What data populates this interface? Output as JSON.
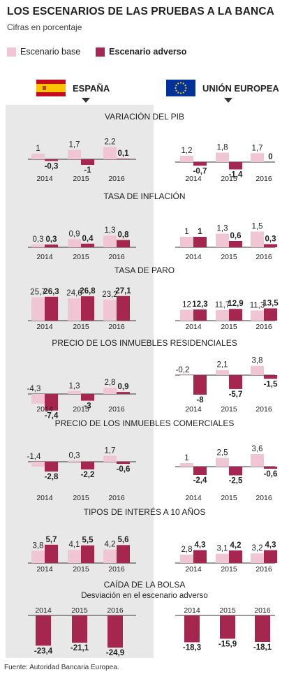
{
  "header": {
    "title": "LOS ESCENARIOS DE LAS PRUEBAS A LA BANCA",
    "subtitle": "Cifras en porcentaje"
  },
  "legend": {
    "base_label": "Escenario base",
    "adverse_label": "Escenario adverso"
  },
  "columns": {
    "spain": "ESPAÑA",
    "eu": "UNIÓN EUROPEA"
  },
  "colors": {
    "base": "#f1c6d4",
    "adverse": "#a5264f",
    "panel": "#e8e8e8",
    "spain_red": "#c60b1e",
    "spain_yellow": "#ffc400",
    "eu_blue": "#003399",
    "eu_star": "#ffcc00"
  },
  "source": "Fuente: Autoridad Bancaria Europea.",
  "chart_data": [
    {
      "type": "bar",
      "title": "VARIACIÓN DEL PIB",
      "categories": [
        "2014",
        "2015",
        "2016"
      ],
      "spain": {
        "base": [
          1,
          1.7,
          2.2
        ],
        "adverse": [
          -0.3,
          -1,
          0.1
        ]
      },
      "eu": {
        "base": [
          1.2,
          1.8,
          1.7
        ],
        "adverse": [
          -0.7,
          -1.4,
          0
        ]
      }
    },
    {
      "type": "bar",
      "title": "TASA DE INFLACIÓN",
      "categories": [
        "2014",
        "2015",
        "2016"
      ],
      "spain": {
        "base": [
          0.3,
          0.9,
          1.3
        ],
        "adverse": [
          0.3,
          0.4,
          0.8
        ]
      },
      "eu": {
        "base": [
          1,
          1.3,
          1.5
        ],
        "adverse": [
          1,
          0.6,
          0.3
        ]
      }
    },
    {
      "type": "bar",
      "title": "TASA DE PARO",
      "categories": [
        "2014",
        "2015",
        "2016"
      ],
      "spain": {
        "base": [
          25.7,
          24.6,
          23.2
        ],
        "adverse": [
          26.3,
          26.8,
          27.1
        ]
      },
      "eu": {
        "base": [
          12,
          11.7,
          11.3
        ],
        "adverse": [
          12.3,
          12.9,
          13.5
        ]
      }
    },
    {
      "type": "bar",
      "title": "PRECIO DE LOS INMUEBLES RESIDENCIALES",
      "categories": [
        "2014",
        "2015",
        "2016"
      ],
      "spain": {
        "base": [
          -4.3,
          1.3,
          2.8
        ],
        "adverse": [
          -7.4,
          -3,
          0.9
        ]
      },
      "eu": {
        "base": [
          -0.2,
          2.1,
          3.8
        ],
        "adverse": [
          -8,
          -5.7,
          -1.5
        ]
      }
    },
    {
      "type": "bar",
      "title": "PRECIO DE LOS INMUEBLES COMERCIALES",
      "categories": [
        "2014",
        "2015",
        "2016"
      ],
      "spain": {
        "base": [
          -1.4,
          0.3,
          1.7
        ],
        "adverse": [
          -2.8,
          -2.2,
          -0.6
        ]
      },
      "eu": {
        "base": [
          1,
          2.5,
          3.6
        ],
        "adverse": [
          -2.4,
          -2.5,
          -0.6
        ]
      }
    },
    {
      "type": "bar",
      "title": "TIPOS DE INTERÉS A 10 AÑOS",
      "categories": [
        "2014",
        "2015",
        "2016"
      ],
      "spain": {
        "base": [
          3.8,
          4.1,
          4.2
        ],
        "adverse": [
          5.7,
          5.5,
          5.6
        ]
      },
      "eu": {
        "base": [
          2.8,
          3.1,
          3.2
        ],
        "adverse": [
          4.3,
          4.2,
          4.3
        ]
      }
    },
    {
      "type": "bar",
      "title": "CAÍDA DE LA BOLSA",
      "subtitle": "Desviación en el escenario adverso",
      "categories": [
        "2014",
        "2015",
        "2016"
      ],
      "spain": {
        "adverse": [
          -23.4,
          -21.1,
          -24.9
        ]
      },
      "eu": {
        "adverse": [
          -18.3,
          -15.9,
          -18.1
        ]
      }
    }
  ]
}
